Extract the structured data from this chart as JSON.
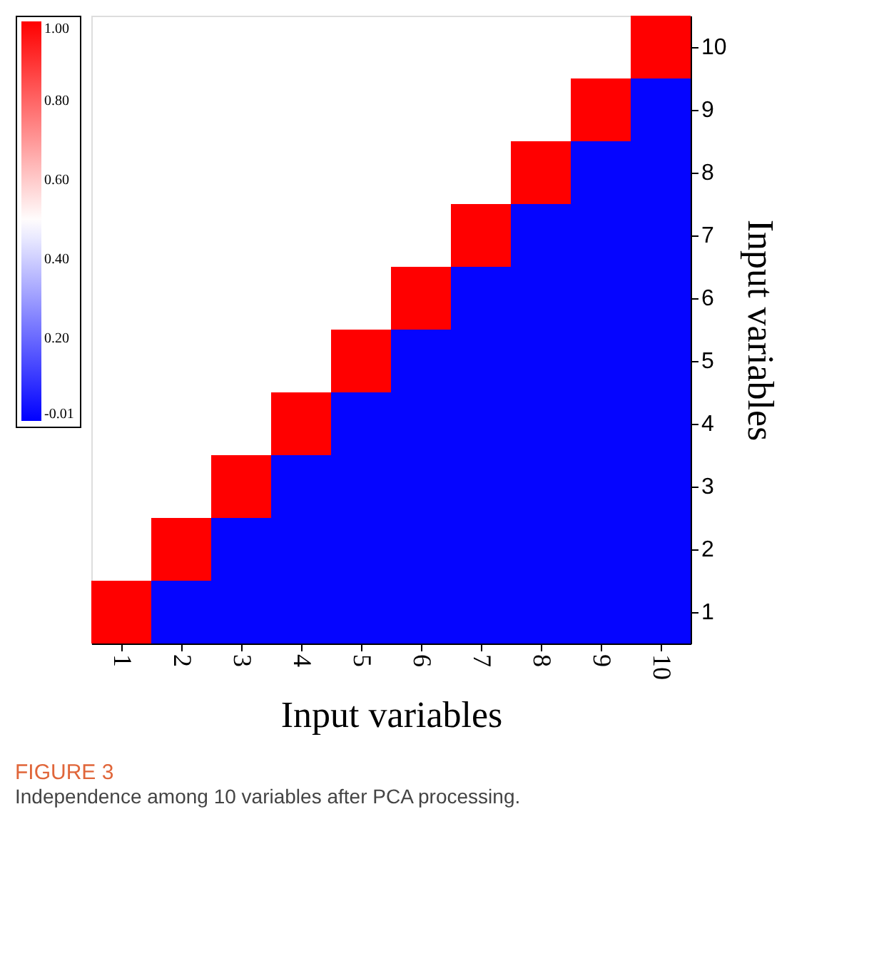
{
  "chart_data": {
    "type": "heatmap",
    "title": "FIGURE 3",
    "subtitle": "Independence among 10 variables after PCA processing.",
    "xlabel": "Input variables",
    "ylabel": "Input variables",
    "categories": [
      "1",
      "2",
      "3",
      "4",
      "5",
      "6",
      "7",
      "8",
      "9",
      "10"
    ],
    "y_categories": [
      "10",
      "9",
      "8",
      "7",
      "6",
      "5",
      "4",
      "3",
      "2",
      "1"
    ],
    "cells": [
      [
        null,
        null,
        null,
        null,
        null,
        null,
        null,
        null,
        null,
        1
      ],
      [
        null,
        null,
        null,
        null,
        null,
        null,
        null,
        null,
        1,
        0
      ],
      [
        null,
        null,
        null,
        null,
        null,
        null,
        null,
        1,
        0,
        0
      ],
      [
        null,
        null,
        null,
        null,
        null,
        null,
        1,
        0,
        0,
        0
      ],
      [
        null,
        null,
        null,
        null,
        null,
        1,
        0,
        0,
        0,
        0
      ],
      [
        null,
        null,
        null,
        null,
        1,
        0,
        0,
        0,
        0,
        0
      ],
      [
        null,
        null,
        null,
        1,
        0,
        0,
        0,
        0,
        0,
        0
      ],
      [
        null,
        null,
        1,
        0,
        0,
        0,
        0,
        0,
        0,
        0
      ],
      [
        null,
        1,
        0,
        0,
        0,
        0,
        0,
        0,
        0,
        0
      ],
      [
        1,
        0,
        0,
        0,
        0,
        0,
        0,
        0,
        0,
        0
      ]
    ],
    "clim": [
      -0.01,
      1.0
    ],
    "cticks": [
      {
        "value": 1.0,
        "label": "1.00"
      },
      {
        "value": 0.8,
        "label": "0.80"
      },
      {
        "value": 0.6,
        "label": "0.60"
      },
      {
        "value": 0.4,
        "label": "0.40"
      },
      {
        "value": 0.2,
        "label": "0.20"
      },
      {
        "value": -0.01,
        "label": "-0.01"
      }
    ]
  }
}
